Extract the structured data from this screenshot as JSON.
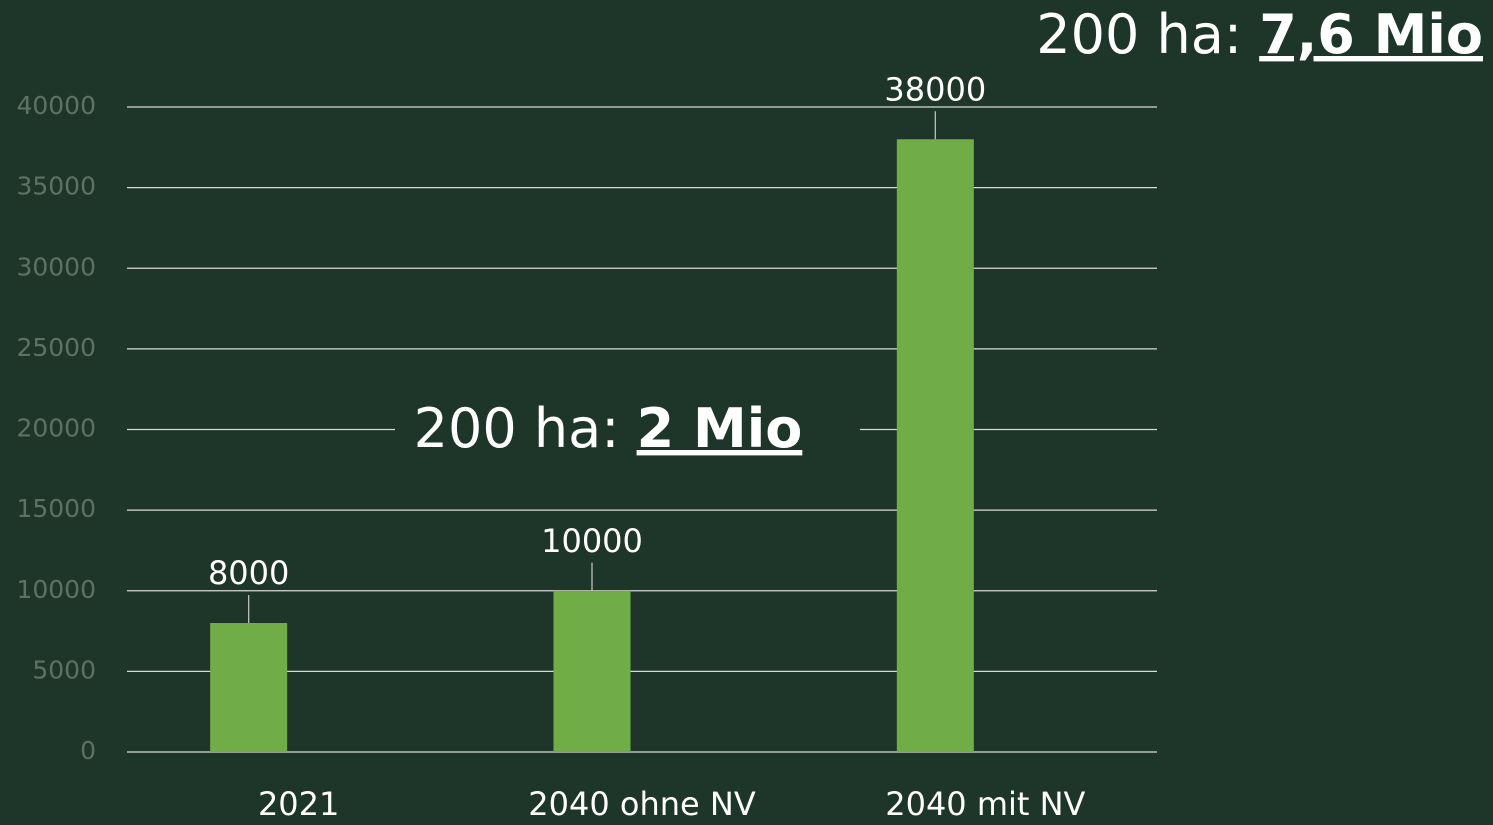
{
  "chart_data": {
    "type": "bar",
    "categories": [
      "2021",
      "2040 ohne NV",
      "2040 mit NV"
    ],
    "values": [
      8000,
      10000,
      38000
    ],
    "color": "#70ad47",
    "ylim": [
      0,
      40000
    ],
    "yticks": [
      0,
      5000,
      10000,
      15000,
      20000,
      25000,
      30000,
      35000,
      40000
    ],
    "grid": true,
    "annotations": [
      {
        "text": "200 ha:",
        "emphasis": "2 Mio"
      },
      {
        "text": "200 ha:",
        "emphasis": "7,6 Mio"
      }
    ]
  }
}
